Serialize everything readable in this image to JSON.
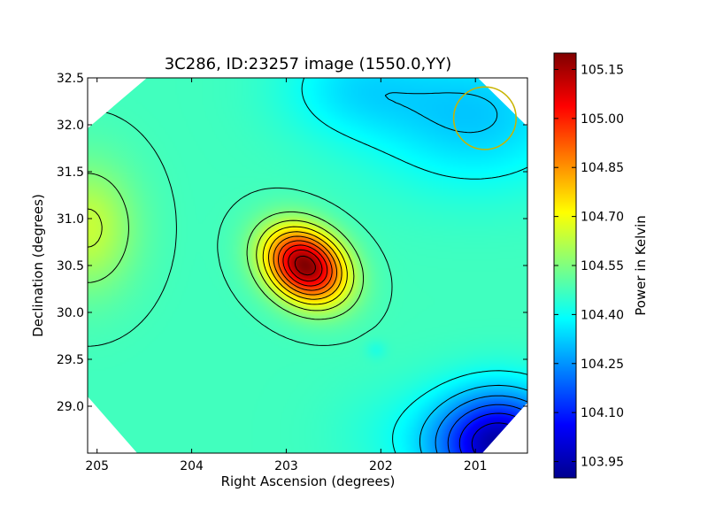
{
  "chart_data": {
    "type": "heatmap",
    "title": "3C286, ID:23257 image (1550.0,YY)",
    "xlabel": "Right Ascension (degrees)",
    "ylabel": "Declination (degrees)",
    "xlim": [
      205.1,
      200.45
    ],
    "ylim": [
      28.5,
      32.5
    ],
    "x_inverted": true,
    "xticks": [
      205,
      204,
      203,
      202,
      201
    ],
    "yticks": [
      29.0,
      29.5,
      30.0,
      30.5,
      31.0,
      31.5,
      32.0,
      32.5
    ],
    "colormap": "jet",
    "colorbar": {
      "label": "Power in Kelvin",
      "range": [
        103.9,
        105.2
      ],
      "ticks": [
        "103.95",
        "104.10",
        "104.25",
        "104.40",
        "104.55",
        "104.70",
        "104.85",
        "105.00",
        "105.15"
      ]
    },
    "peak": {
      "ra": 202.8,
      "dec": 30.5,
      "value": 105.2
    },
    "secondary_max": {
      "ra": 205.1,
      "dec": 30.9,
      "value": 104.65
    },
    "minimum": {
      "ra": 200.75,
      "dec": 28.6,
      "value": 103.95
    },
    "beam": {
      "ra": 200.9,
      "dec": 32.07,
      "radius_deg": 0.33,
      "color": "#c8b400"
    },
    "grid": false,
    "colors": {
      "contour": "#000000",
      "beam": "#c8b400",
      "mask": "#ffffff"
    }
  }
}
